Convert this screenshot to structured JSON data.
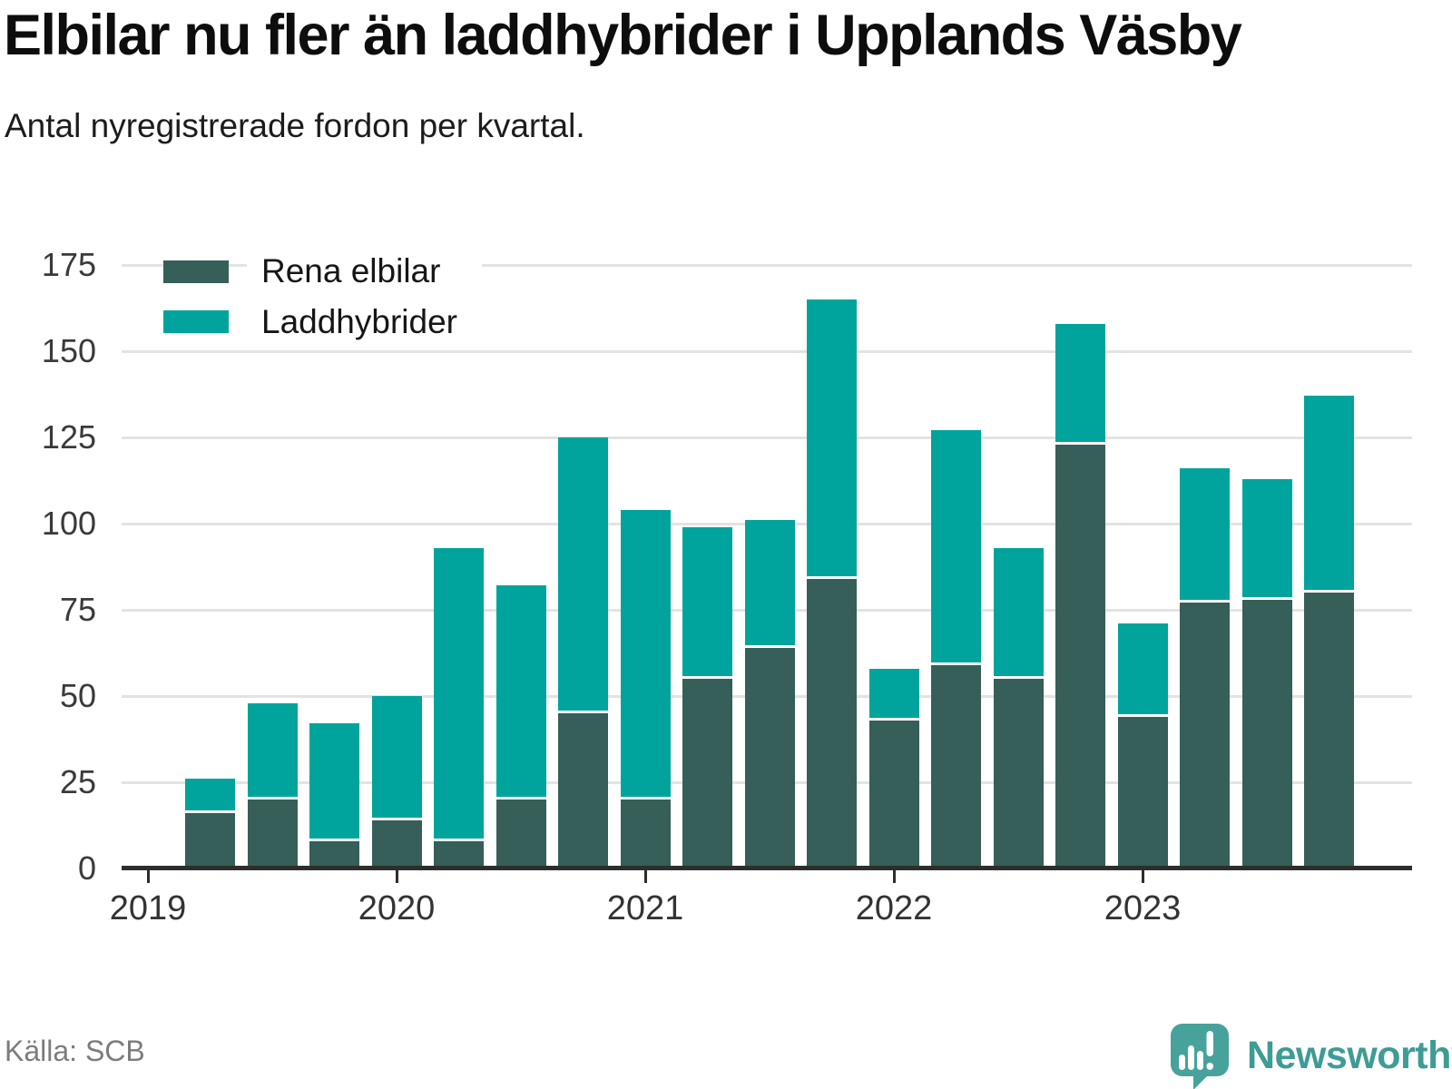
{
  "header": {
    "title": "Elbilar nu fler än laddhybrider i Upplands Väsby",
    "subtitle": "Antal nyregistrerade fordon per kvartal."
  },
  "legend": [
    {
      "label": "Rena elbilar",
      "color": "#355f58"
    },
    {
      "label": "Laddhybrider",
      "color": "#00a49c"
    }
  ],
  "chart_data": {
    "type": "bar",
    "stacked": true,
    "title": "Elbilar nu fler än laddhybrider i Upplands Väsby",
    "subtitle": "Antal nyregistrerade fordon per kvartal.",
    "categories": [
      "2019 Q2",
      "2019 Q3",
      "2019 Q4",
      "2020 Q1",
      "2020 Q2",
      "2020 Q3",
      "2020 Q4",
      "2021 Q1",
      "2021 Q2",
      "2021 Q3",
      "2021 Q4",
      "2022 Q1",
      "2022 Q2",
      "2022 Q3",
      "2022 Q4",
      "2023 Q1",
      "2023 Q2",
      "2023 Q3",
      "2023 Q4"
    ],
    "series": [
      {
        "name": "Rena elbilar",
        "color": "#355f58",
        "values": [
          16,
          20,
          8,
          14,
          8,
          20,
          45,
          20,
          55,
          64,
          84,
          43,
          59,
          55,
          123,
          44,
          77,
          78,
          80
        ]
      },
      {
        "name": "Laddhybrider",
        "color": "#00a49c",
        "values": [
          10,
          28,
          34,
          36,
          85,
          62,
          80,
          84,
          44,
          37,
          81,
          15,
          68,
          38,
          35,
          27,
          39,
          35,
          57
        ]
      }
    ],
    "xlabel": "",
    "ylabel": "",
    "xticks": [
      "2019",
      "2020",
      "2021",
      "2022",
      "2023"
    ],
    "yticks": [
      0,
      25,
      50,
      75,
      100,
      125,
      150,
      175
    ],
    "ylim": [
      0,
      175
    ],
    "grid": true,
    "grid_color": "#e3e3e3",
    "axis_color": "#2d2d2d",
    "legend_position": "top-left"
  },
  "footer": {
    "source": "Källa: SCB",
    "brand": "Newsworthy",
    "brand_color": "#3e9c95",
    "icon_color": "#47a29b"
  }
}
